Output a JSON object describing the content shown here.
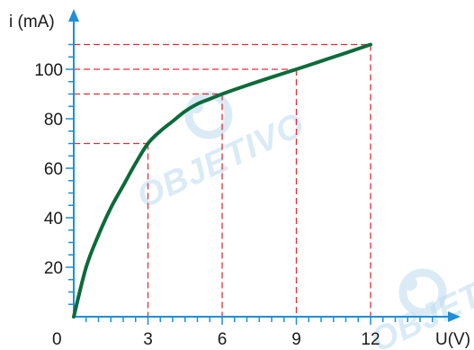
{
  "watermark": {
    "text": "OBJETIVO",
    "color": "#bcdcf0"
  },
  "colors": {
    "axis": "#1e8fd8",
    "curve": "#0b6b3a",
    "guide": "#e0303a",
    "text": "#1a1a1a"
  },
  "chart_data": {
    "type": "line",
    "xlabel": "U(V)",
    "ylabel": "i (mA)",
    "origin_label": "0",
    "xlim": [
      0,
      15
    ],
    "ylim": [
      0,
      110
    ],
    "x_ticks": [
      3,
      6,
      9,
      12
    ],
    "y_ticks": [
      20,
      40,
      60,
      80,
      100
    ],
    "x_minor_step": 0.5,
    "y_minor_step": 5,
    "grid": false,
    "series": [
      {
        "x": [
          0,
          0.5,
          1,
          1.5,
          2,
          2.5,
          3,
          3.5,
          4,
          4.5,
          5,
          5.5,
          6,
          7,
          8,
          9,
          10,
          11,
          12
        ],
        "y": [
          0,
          20,
          33,
          44,
          53,
          62,
          70,
          75,
          79,
          83,
          86,
          88,
          90,
          93.5,
          96.8,
          100,
          103.3,
          106.6,
          110
        ]
      }
    ],
    "guides": [
      {
        "x": 3,
        "y": 70
      },
      {
        "x": 6,
        "y": 90
      },
      {
        "x": 9,
        "y": 100
      },
      {
        "x": 12,
        "y": 110
      }
    ]
  }
}
